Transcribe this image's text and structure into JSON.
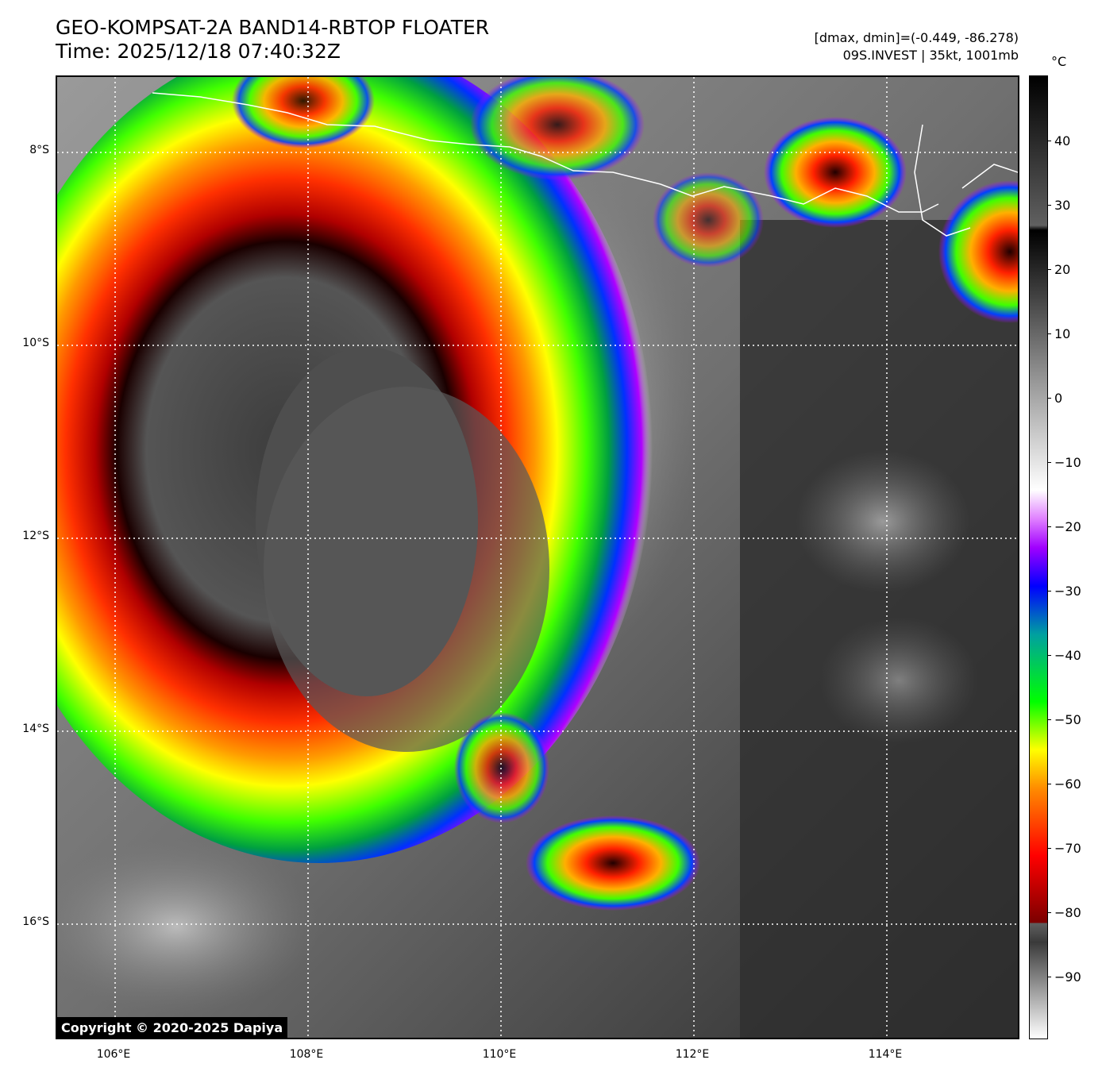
{
  "header": {
    "title": "GEO-KOMPSAT-2A BAND14-RBTOP FLOATER",
    "time": "Time: 2025/12/18 07:40:32Z",
    "range": "[dmax, dmin]=(-0.449, -86.278)",
    "storm": "09S.INVEST | 35kt, 1001mb"
  },
  "map": {
    "copyright": "Copyright © 2020-2025 Dapiya",
    "lat_labels": [
      "8°S",
      "10°S",
      "12°S",
      "14°S",
      "16°S"
    ],
    "lon_labels": [
      "106°E",
      "108°E",
      "110°E",
      "112°E",
      "114°E"
    ]
  },
  "colorbar": {
    "unit": "°C",
    "ticks": [
      "40",
      "30",
      "20",
      "10",
      "0",
      "−10",
      "−20",
      "−30",
      "−40",
      "−50",
      "−60",
      "−70",
      "−80",
      "−90"
    ],
    "colors": {
      "black": "#000000",
      "dark_red": "#7a0000",
      "red": "#ff0000",
      "orange": "#ff8c00",
      "yellow": "#ffff00",
      "green": "#00ff00",
      "blue": "#0000ff",
      "purple": "#a000ff",
      "white": "#ffffff"
    }
  }
}
